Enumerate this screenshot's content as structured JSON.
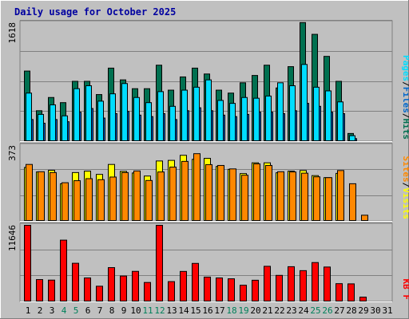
{
  "chart_data": [
    {
      "type": "bar",
      "title": "Daily usage for October 2025",
      "categories": [
        "1",
        "2",
        "3",
        "4",
        "5",
        "6",
        "7",
        "8",
        "9",
        "10",
        "11",
        "12",
        "13",
        "14",
        "15",
        "16",
        "17",
        "18",
        "19",
        "20",
        "21",
        "22",
        "23",
        "24",
        "25",
        "26",
        "27",
        "28",
        "29",
        "30",
        "31"
      ],
      "weekend_days": [
        "4",
        "5",
        "11",
        "12",
        "18",
        "19",
        "25",
        "26"
      ],
      "ymax_label": "1618",
      "ylim": [
        0,
        1618
      ],
      "series": [
        {
          "name": "Hits",
          "color": "#007050",
          "values": [
            960,
            420,
            600,
            530,
            820,
            820,
            640,
            1000,
            840,
            720,
            720,
            1040,
            700,
            880,
            1000,
            920,
            700,
            660,
            800,
            900,
            1040,
            730,
            1020,
            1620,
            1460,
            1160,
            820,
            110,
            null,
            null,
            null
          ]
        },
        {
          "name": "Files",
          "color": "#0066cc",
          "values": [
            300,
            250,
            300,
            270,
            400,
            450,
            320,
            380,
            410,
            360,
            340,
            380,
            300,
            420,
            460,
            420,
            360,
            340,
            370,
            400,
            400,
            380,
            420,
            520,
            480,
            400,
            380,
            40,
            null,
            null,
            null
          ]
        },
        {
          "name": "Pages",
          "color": "#00ddff",
          "values": [
            660,
            370,
            500,
            350,
            720,
            760,
            550,
            650,
            790,
            600,
            530,
            680,
            480,
            700,
            740,
            840,
            560,
            520,
            600,
            590,
            620,
            800,
            760,
            1050,
            740,
            690,
            540,
            80,
            null,
            null,
            null
          ]
        }
      ]
    },
    {
      "type": "bar",
      "ymax_label": "373",
      "ylim": [
        0,
        373
      ],
      "series": [
        {
          "name": "Visits",
          "color": "#ffff00",
          "values": [
            265,
            243,
            251,
            185,
            240,
            247,
            231,
            280,
            246,
            238,
            223,
            297,
            300,
            325,
            305,
            310,
            270,
            256,
            235,
            288,
            288,
            239,
            247,
            250,
            225,
            215,
            236,
            0,
            null,
            null,
            null
          ]
        },
        {
          "name": "Sites",
          "color": "#ff8800",
          "values": [
            280,
            244,
            240,
            190,
            200,
            210,
            205,
            218,
            240,
            248,
            201,
            243,
            267,
            295,
            333,
            279,
            275,
            258,
            227,
            283,
            275,
            244,
            243,
            237,
            219,
            215,
            250,
            185,
            30,
            null,
            null
          ]
        }
      ]
    },
    {
      "type": "bar",
      "ymax_label": "11646",
      "ylim": [
        0,
        11646
      ],
      "series": [
        {
          "name": "KB F",
          "color": "#ff0000",
          "values": [
            11646,
            3390,
            3310,
            9390,
            5870,
            3640,
            2380,
            5210,
            3930,
            4640,
            2950,
            11646,
            3080,
            4630,
            5850,
            3770,
            3640,
            3510,
            2530,
            3290,
            5410,
            4030,
            5350,
            4750,
            5980,
            5300,
            2770,
            2740,
            720,
            null,
            null
          ]
        }
      ]
    }
  ]
}
